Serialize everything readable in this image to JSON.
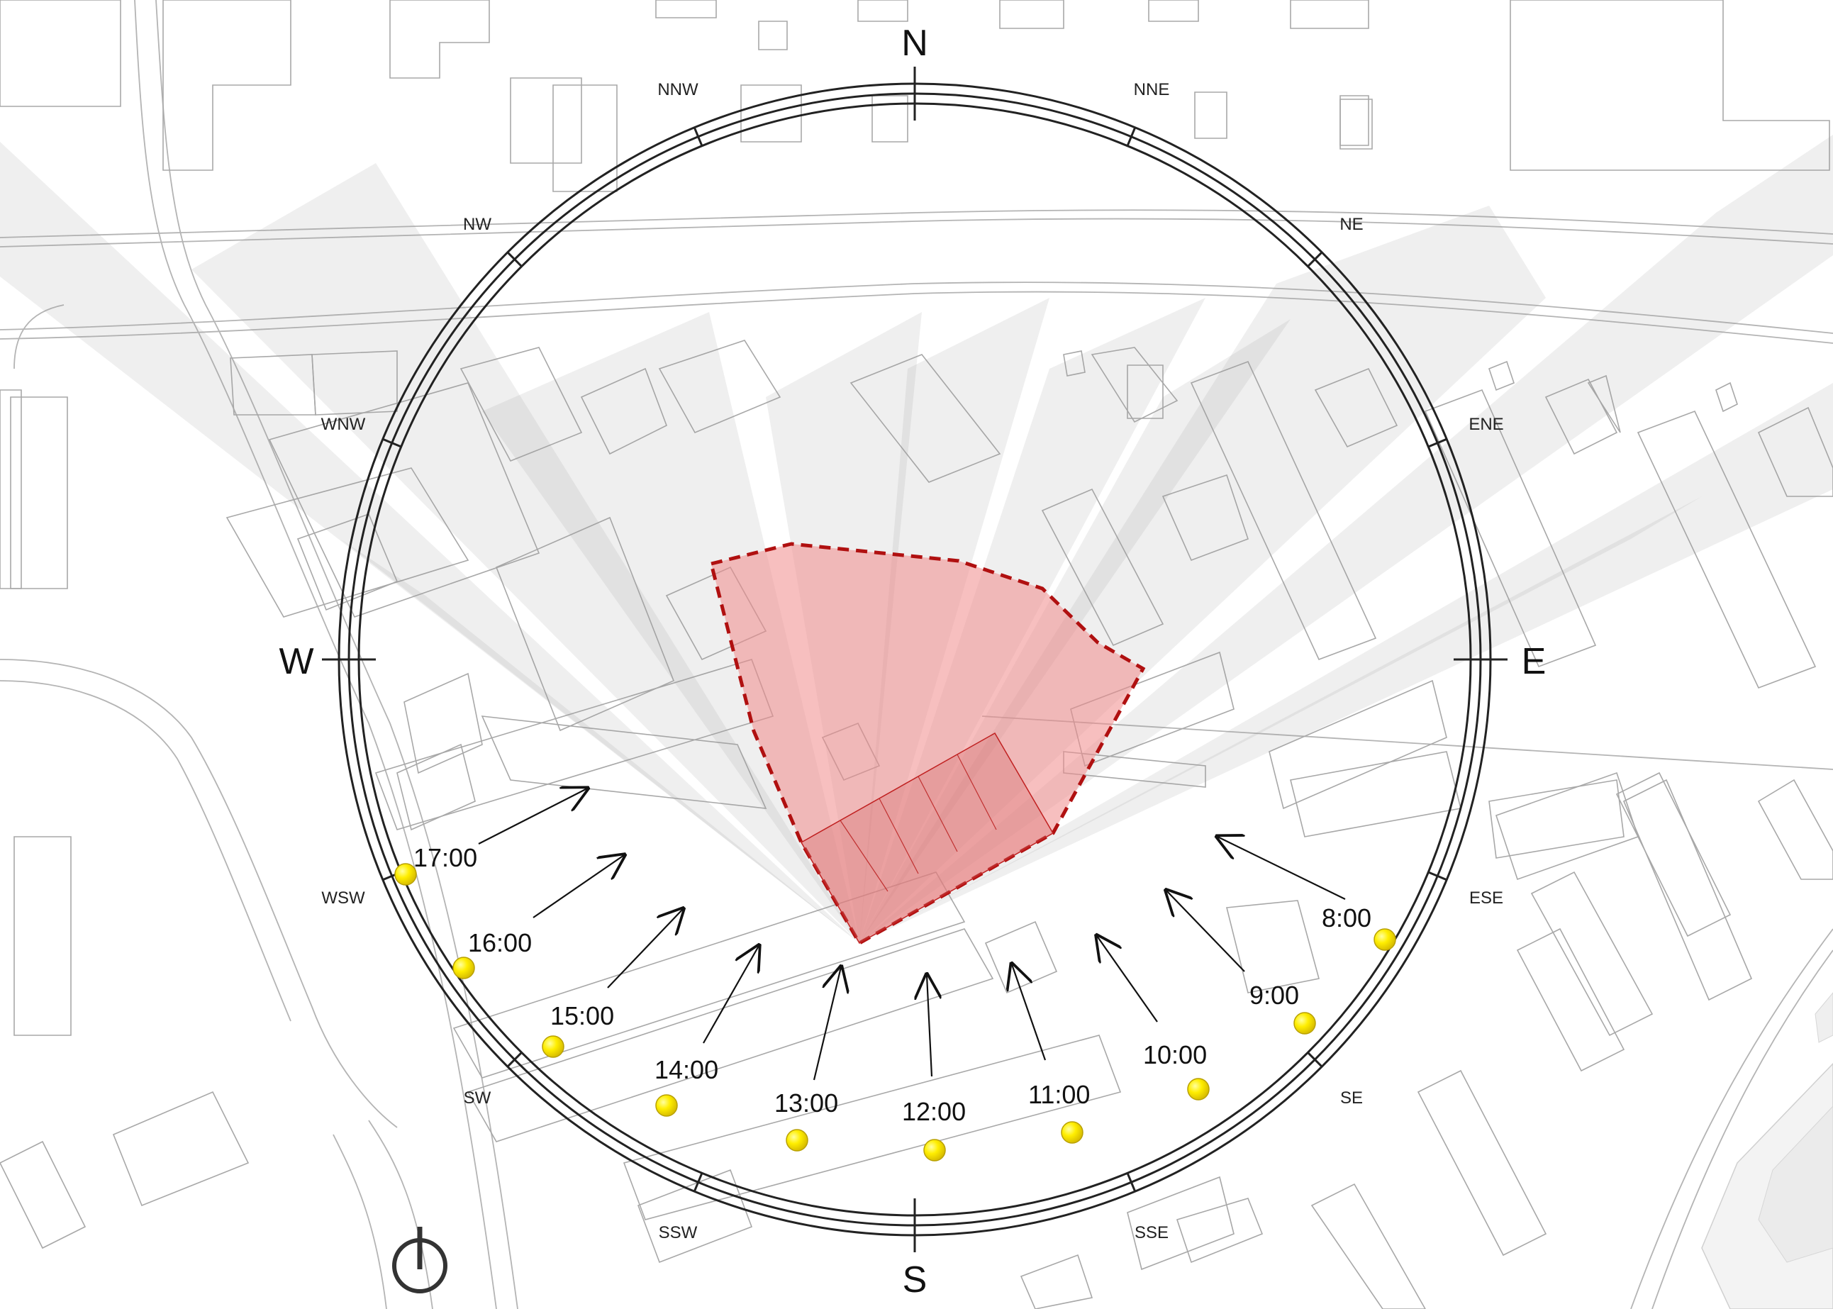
{
  "compass": {
    "cardinals": {
      "north": "N",
      "east": "E",
      "south": "S",
      "west": "W"
    },
    "intercardinals": [
      {
        "key": "nnw",
        "label": "NNW"
      },
      {
        "key": "nne",
        "label": "NNE"
      },
      {
        "key": "nw",
        "label": "NW"
      },
      {
        "key": "ne",
        "label": "NE"
      },
      {
        "key": "wnw",
        "label": "WNW"
      },
      {
        "key": "ene",
        "label": "ENE"
      },
      {
        "key": "wsw",
        "label": "WSW"
      },
      {
        "key": "ese",
        "label": "ESE"
      },
      {
        "key": "sw",
        "label": "SW"
      },
      {
        "key": "se",
        "label": "SE"
      },
      {
        "key": "ssw",
        "label": "SSW"
      },
      {
        "key": "sse",
        "label": "SSE"
      }
    ]
  },
  "sun_path": {
    "times": [
      "17:00",
      "16:00",
      "15:00",
      "14:00",
      "13:00",
      "12:00",
      "11:00",
      "10:00",
      "9:00",
      "8:00"
    ]
  },
  "colors": {
    "site_fill": "#f08a8a",
    "site_outline": "#b01010",
    "sun": "#ffee00",
    "shadow": "#9a9a9a"
  },
  "icons": {
    "north_arrow": "north-arrow-icon"
  }
}
